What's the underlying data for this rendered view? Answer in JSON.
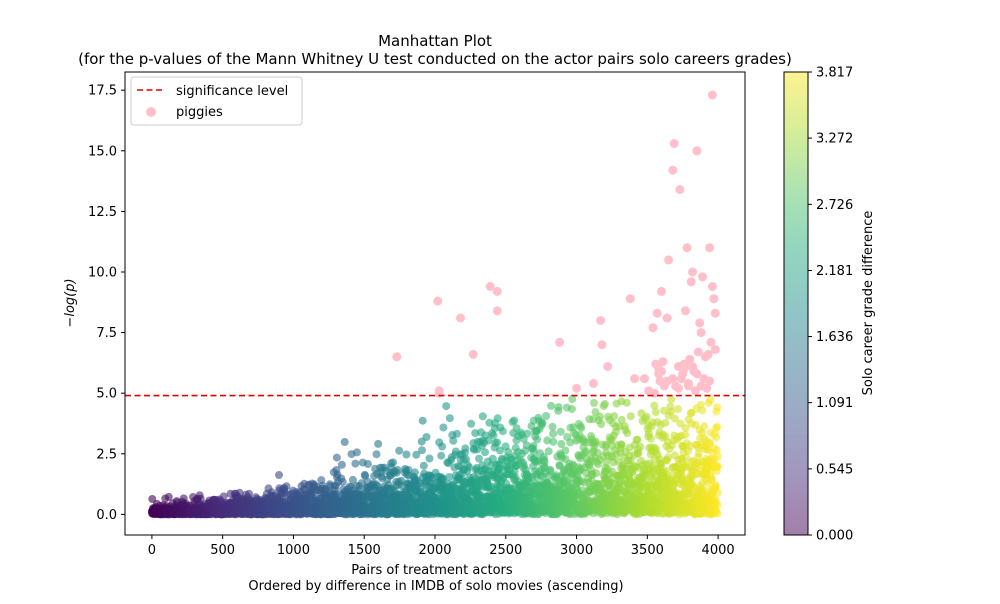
{
  "chart_data": {
    "type": "scatter",
    "title_line1": "Manhattan Plot",
    "title_line2": "(for the p-values of the Mann Whitney U test conducted on the actor pairs solo careers grades)",
    "xlabel_line1": "Pairs of treatment actors",
    "xlabel_line2": "Ordered by difference in IMDB of solo movies (ascending)",
    "ylabel": "−log(p)",
    "xlim": [
      -190,
      4190
    ],
    "ylim": [
      -0.85,
      18.25
    ],
    "xticks": [
      0,
      500,
      1000,
      1500,
      2000,
      2500,
      3000,
      3500,
      4000
    ],
    "yticks": [
      0.0,
      2.5,
      5.0,
      7.5,
      10.0,
      12.5,
      15.0,
      17.5
    ],
    "ytick_labels": [
      "0.0",
      "2.5",
      "5.0",
      "7.5",
      "10.0",
      "12.5",
      "15.0",
      "17.5"
    ],
    "n_points": 4000,
    "significance_level": 4.9,
    "colorbar": {
      "label": "Solo career grade difference",
      "min": 0.0,
      "max": 3.817,
      "ticks": [
        "0.000",
        "0.545",
        "1.091",
        "1.636",
        "2.181",
        "2.726",
        "3.272",
        "3.817"
      ],
      "colormap": "viridis",
      "alpha": 0.5
    },
    "legend": {
      "placement": "top-left",
      "items": [
        {
          "label": "significance level",
          "color": "#e00000",
          "style": "dashed-line"
        },
        {
          "label": "piggies",
          "color": "#ffc0cb",
          "style": "marker"
        }
      ]
    },
    "highlighted_points": {
      "name": "piggies",
      "color": "#ffc0cb",
      "x": [
        1730,
        2020,
        2030,
        2030,
        2180,
        2270,
        2390,
        2440,
        2440,
        2880,
        3000,
        3120,
        3170,
        3180,
        3220,
        3380,
        3410,
        3480,
        3510,
        3540,
        3550,
        3560,
        3570,
        3580,
        3590,
        3600,
        3610,
        3620,
        3640,
        3650,
        3680,
        3690,
        3700,
        3720,
        3730,
        3740,
        3750,
        3760,
        3770,
        3780,
        3790,
        3800,
        3810,
        3820,
        3830,
        3840,
        3850,
        3860,
        3870,
        3880,
        3890,
        3900,
        3910,
        3920,
        3930,
        3940,
        3950,
        3960,
        3970,
        3980,
        3980,
        3960,
        3940,
        3880,
        3850,
        3820,
        3790,
        3760,
        3720,
        3680,
        3640,
        3600,
        3580
      ],
      "y": [
        6.5,
        8.8,
        5.0,
        5.1,
        8.1,
        6.6,
        9.4,
        9.2,
        8.4,
        7.1,
        5.2,
        5.4,
        8.0,
        7.0,
        6.1,
        8.9,
        5.6,
        5.6,
        5.1,
        7.7,
        5.0,
        6.2,
        8.3,
        5.8,
        5.5,
        9.2,
        6.3,
        5.3,
        8.1,
        10.5,
        14.2,
        15.3,
        5.3,
        6.1,
        13.4,
        5.6,
        5.8,
        6.2,
        8.4,
        11.0,
        5.3,
        6.4,
        9.6,
        10.0,
        5.9,
        5.1,
        15.0,
        6.7,
        7.9,
        7.5,
        9.8,
        5.6,
        6.5,
        5.2,
        6.6,
        11.0,
        7.1,
        9.4,
        8.9,
        8.3,
        6.8,
        17.3,
        5.5,
        5.3,
        5.8,
        6.1,
        5.4,
        6.0,
        5.2,
        5.6,
        5.5,
        5.9,
        6.0
      ]
    }
  }
}
